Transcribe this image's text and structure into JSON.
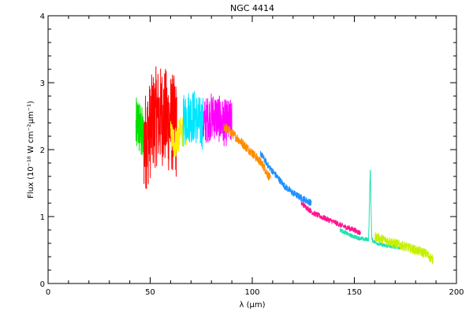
{
  "chart_data": {
    "type": "line",
    "title": "NGC 4414",
    "xlabel": "λ (μm)",
    "ylabel": "Flux (10⁻¹⁸ W cm⁻²μm⁻¹)",
    "xlim": [
      0,
      200
    ],
    "ylim": [
      0,
      4.0
    ],
    "xticks": [
      0,
      50,
      100,
      150,
      200
    ],
    "yticks": [
      0,
      1,
      2,
      3,
      4
    ],
    "grid": false,
    "legend": "none",
    "series": [
      {
        "color": "#00e000",
        "noise": 0.45,
        "x": [
          43,
          44,
          45,
          46,
          47
        ],
        "y": [
          2.3,
          2.4,
          2.3,
          2.2,
          2.1
        ]
      },
      {
        "color": "#ff0000",
        "noise": 0.75,
        "x": [
          47,
          49,
          51,
          53,
          55,
          57,
          59,
          61,
          63
        ],
        "y": [
          2.1,
          2.2,
          2.4,
          2.5,
          2.5,
          2.5,
          2.4,
          2.4,
          2.3
        ]
      },
      {
        "color": "#ffee00",
        "noise": 0.25,
        "x": [
          60,
          62,
          64,
          66,
          68
        ],
        "y": [
          2.2,
          2.1,
          2.2,
          2.3,
          2.3
        ]
      },
      {
        "color": "#00e6ff",
        "noise": 0.4,
        "x": [
          66,
          68,
          70,
          72,
          74,
          76
        ],
        "y": [
          2.4,
          2.5,
          2.5,
          2.5,
          2.4,
          2.4
        ]
      },
      {
        "color": "#ff00ff",
        "noise": 0.35,
        "x": [
          76,
          78,
          80,
          82,
          84,
          86,
          88,
          90
        ],
        "y": [
          2.4,
          2.45,
          2.5,
          2.5,
          2.45,
          2.4,
          2.4,
          2.4
        ]
      },
      {
        "color": "#ff8c00",
        "noise": 0.07,
        "x": [
          86,
          90,
          95,
          100,
          105,
          109
        ],
        "y": [
          2.35,
          2.25,
          2.1,
          1.95,
          1.78,
          1.55
        ]
      },
      {
        "color": "#1e90ff",
        "noise": 0.05,
        "x": [
          104,
          108,
          112,
          116,
          120,
          124,
          129
        ],
        "y": [
          1.95,
          1.75,
          1.6,
          1.45,
          1.35,
          1.28,
          1.2
        ]
      },
      {
        "color": "#ff1493",
        "noise": 0.04,
        "x": [
          124,
          130,
          135,
          140,
          145,
          150,
          153
        ],
        "y": [
          1.2,
          1.05,
          0.98,
          0.92,
          0.85,
          0.8,
          0.75
        ]
      },
      {
        "color": "#20e0b0",
        "noise": 0.03,
        "x": [
          143,
          148,
          152,
          155,
          157,
          157.8,
          158.5,
          160,
          163,
          166,
          170,
          173
        ],
        "y": [
          0.8,
          0.72,
          0.68,
          0.66,
          0.66,
          1.75,
          0.66,
          0.62,
          0.58,
          0.56,
          0.55,
          0.53
        ]
      },
      {
        "color": "#c6f000",
        "noise": 0.07,
        "x": [
          160,
          165,
          170,
          175,
          180,
          185,
          188.5
        ],
        "y": [
          0.7,
          0.65,
          0.6,
          0.55,
          0.5,
          0.45,
          0.35
        ]
      }
    ]
  }
}
